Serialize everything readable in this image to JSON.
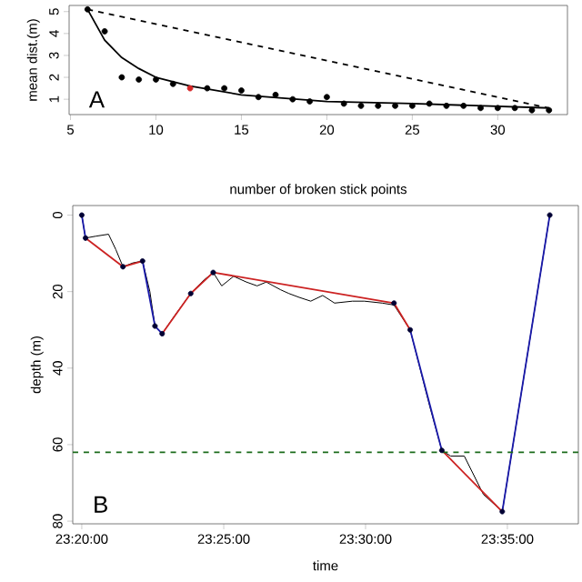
{
  "chart_data": [
    {
      "type": "scatter",
      "xlabel": "number of broken stick points",
      "ylabel": "mean dist.(m)",
      "annotations": [
        "A"
      ],
      "xlim": [
        4.92,
        34.08
      ],
      "ylim": [
        0.3,
        5.28
      ],
      "xticks": [
        5,
        10,
        15,
        20,
        25,
        30
      ],
      "yticks": [
        1,
        2,
        3,
        4,
        5
      ],
      "grid": false,
      "series": [
        {
          "marker": "circle",
          "x": [
            6,
            7,
            8,
            9,
            10,
            11,
            12,
            13,
            14,
            15,
            16,
            17,
            18,
            19,
            20,
            21,
            22,
            23,
            24,
            25,
            26,
            27,
            28,
            29,
            30,
            31,
            32,
            33
          ],
          "values": [
            5.1,
            4.1,
            2.0,
            1.9,
            1.9,
            1.7,
            1.5,
            1.5,
            1.5,
            1.4,
            1.1,
            1.2,
            1.0,
            0.9,
            1.1,
            0.8,
            0.7,
            0.7,
            0.7,
            0.7,
            0.8,
            0.7,
            0.7,
            0.6,
            0.6,
            0.6,
            0.5,
            0.5
          ],
          "colors": [
            "#000000",
            "#000000",
            "#000000",
            "#000000",
            "#000000",
            "#000000",
            "#d62728",
            "#000000",
            "#000000",
            "#000000",
            "#000000",
            "#000000",
            "#000000",
            "#000000",
            "#000000",
            "#000000",
            "#000000",
            "#000000",
            "#000000",
            "#000000",
            "#000000",
            "#000000",
            "#000000",
            "#000000",
            "#000000",
            "#000000",
            "#000000",
            "#000000"
          ]
        },
        {
          "type": "line",
          "x": [
            6,
            7,
            8,
            9,
            10,
            11,
            12,
            15,
            20,
            25,
            33
          ],
          "values": [
            5.1,
            3.7,
            2.9,
            2.4,
            2.0,
            1.8,
            1.6,
            1.2,
            0.9,
            0.8,
            0.6
          ],
          "color": "#000000",
          "line_style": "solid"
        },
        {
          "type": "line",
          "x": [
            6,
            33
          ],
          "values": [
            5.1,
            0.6
          ],
          "color": "#000000",
          "line_style": "dashed"
        }
      ]
    },
    {
      "type": "line",
      "xlabel": "time",
      "ylabel": "depth (m)",
      "annotations": [
        "B"
      ],
      "xlim": [
        23.328,
        23.625
      ],
      "ylim": [
        80.7,
        -2.5
      ],
      "grid": false,
      "xticks": [
        {
          "value": 23.3333,
          "label": "23:20:00"
        },
        {
          "value": 23.4167,
          "label": "23:25:00"
        },
        {
          "value": 23.5,
          "label": "23:30:00"
        },
        {
          "value": 23.5833,
          "label": "23:35:00"
        }
      ],
      "yticks": [
        0,
        20,
        40,
        60,
        80
      ],
      "ref_lines": [
        {
          "axis": "y",
          "value": 62,
          "color": "#1a6b1a",
          "line_style": "dashed"
        }
      ],
      "series": [
        {
          "color": "#000000",
          "x": [
            23.3333,
            23.3355,
            23.3417,
            23.349,
            23.3533,
            23.3575,
            23.3633,
            23.369,
            23.3733,
            23.3763,
            23.3805,
            23.3883,
            23.3973,
            23.405,
            23.4105,
            23.4155,
            23.4225,
            23.43,
            23.4363,
            23.4417,
            23.45,
            23.455,
            23.461,
            23.4678,
            23.4748,
            23.4818,
            23.4923,
            23.4993,
            23.5098,
            23.5167,
            23.5262,
            23.5377,
            23.5448,
            23.55,
            23.558,
            23.5692,
            23.5803,
            23.6082
          ],
          "values": [
            0,
            6,
            5.5,
            5,
            9,
            13.5,
            12.5,
            12,
            20,
            29,
            31,
            26,
            20.5,
            17,
            15,
            18.5,
            16,
            17.5,
            18.5,
            17.5,
            19.5,
            20.5,
            21.5,
            22.5,
            21,
            23,
            22.5,
            22.5,
            23,
            23.5,
            30,
            50,
            61.5,
            63,
            63,
            73,
            77.5,
            0
          ]
        },
        {
          "color": "#cc2222",
          "x": [
            23.3355,
            23.3575,
            23.369
          ],
          "values": [
            6,
            13.5,
            12
          ]
        },
        {
          "color": "#cc2222",
          "x": [
            23.3805,
            23.3973,
            23.4105,
            23.5167,
            23.5262
          ],
          "values": [
            31,
            20.5,
            15,
            23,
            30
          ]
        },
        {
          "color": "#cc2222",
          "x": [
            23.5448,
            23.5803
          ],
          "values": [
            61.5,
            77.5
          ]
        },
        {
          "color": "#1a1aaa",
          "x": [
            23.3333,
            23.3355
          ],
          "values": [
            0,
            6
          ]
        },
        {
          "color": "#1a1aaa",
          "x": [
            23.369,
            23.3763,
            23.3805
          ],
          "values": [
            12,
            29,
            31
          ]
        },
        {
          "color": "#1a1aaa",
          "x": [
            23.5262,
            23.5448
          ],
          "values": [
            30,
            61.5
          ]
        },
        {
          "color": "#1a1aaa",
          "x": [
            23.5803,
            23.6082
          ],
          "values": [
            77.5,
            0
          ]
        },
        {
          "type": "scatter",
          "marker": "circle",
          "color": "#000033",
          "x": [
            23.3333,
            23.3355,
            23.3575,
            23.369,
            23.3763,
            23.3805,
            23.3973,
            23.4105,
            23.5167,
            23.5262,
            23.5448,
            23.5803,
            23.6082
          ],
          "values": [
            0,
            6,
            13.5,
            12,
            29,
            31,
            20.5,
            15,
            23,
            30,
            61.5,
            77.5,
            0
          ]
        }
      ]
    }
  ]
}
